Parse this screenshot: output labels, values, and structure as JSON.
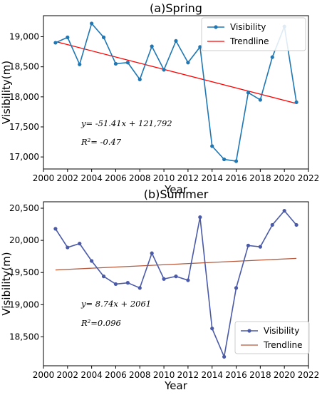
{
  "chart_data": [
    {
      "type": "line",
      "title": "(a)Spring",
      "xlabel": "Year",
      "ylabel": "Visibility(m)",
      "xlim": [
        2000,
        2022
      ],
      "ylim": [
        16800,
        19350
      ],
      "xticks": [
        2000,
        2002,
        2004,
        2006,
        2008,
        2010,
        2012,
        2014,
        2016,
        2018,
        2020,
        2022
      ],
      "yticks": [
        17000,
        17500,
        18000,
        18500,
        19000
      ],
      "ytick_labels": [
        "17,000",
        "17,500",
        "18,000",
        "18,500",
        "19,000"
      ],
      "legend_position": "top-right",
      "series": [
        {
          "name": "Visibility",
          "color": "#1f77b4",
          "x": [
            2001,
            2002,
            2003,
            2004,
            2005,
            2006,
            2007,
            2008,
            2009,
            2010,
            2011,
            2012,
            2013,
            2014,
            2015,
            2016,
            2017,
            2018,
            2019,
            2020,
            2021
          ],
          "y": [
            18900,
            18990,
            18540,
            19220,
            18990,
            18550,
            18570,
            18290,
            18840,
            18450,
            18930,
            18570,
            18830,
            17180,
            16960,
            16930,
            18070,
            17950,
            18660,
            19170,
            17910
          ]
        },
        {
          "name": "Trendline",
          "color": "#ff0000",
          "x": [
            2001,
            2021
          ],
          "y": [
            18920,
            17890
          ]
        }
      ],
      "annotations": [
        "y= -51.41x + 121,792",
        "R²= -0.47"
      ]
    },
    {
      "type": "line",
      "title": "(b)Summer",
      "xlabel": "Year",
      "ylabel": "Visibility(m)",
      "xlim": [
        2000,
        2022
      ],
      "ylim": [
        18050,
        20600
      ],
      "xticks": [
        2000,
        2002,
        2004,
        2006,
        2008,
        2010,
        2012,
        2014,
        2016,
        2018,
        2020,
        2022
      ],
      "yticks": [
        18500,
        19000,
        19500,
        20000,
        20500
      ],
      "ytick_labels": [
        "18,500",
        "19,000",
        "19,500",
        "20,000",
        "20,500"
      ],
      "legend_position": "bottom-right",
      "series": [
        {
          "name": "Visibility",
          "color": "#4a5aa8",
          "x": [
            2001,
            2002,
            2003,
            2004,
            2005,
            2006,
            2007,
            2008,
            2009,
            2010,
            2011,
            2012,
            2013,
            2014,
            2015,
            2016,
            2017,
            2018,
            2019,
            2020,
            2021
          ],
          "y": [
            20180,
            19890,
            19950,
            19680,
            19440,
            19320,
            19340,
            19260,
            19800,
            19400,
            19440,
            19380,
            20360,
            18630,
            18190,
            19260,
            19920,
            19900,
            20240,
            20460,
            20240
          ]
        },
        {
          "name": "Trendline",
          "color": "#b5583a",
          "x": [
            2001,
            2021
          ],
          "y": [
            19540,
            19720
          ]
        }
      ],
      "annotations": [
        "y= 8.74x + 2061",
        "R²=0.096"
      ]
    }
  ]
}
